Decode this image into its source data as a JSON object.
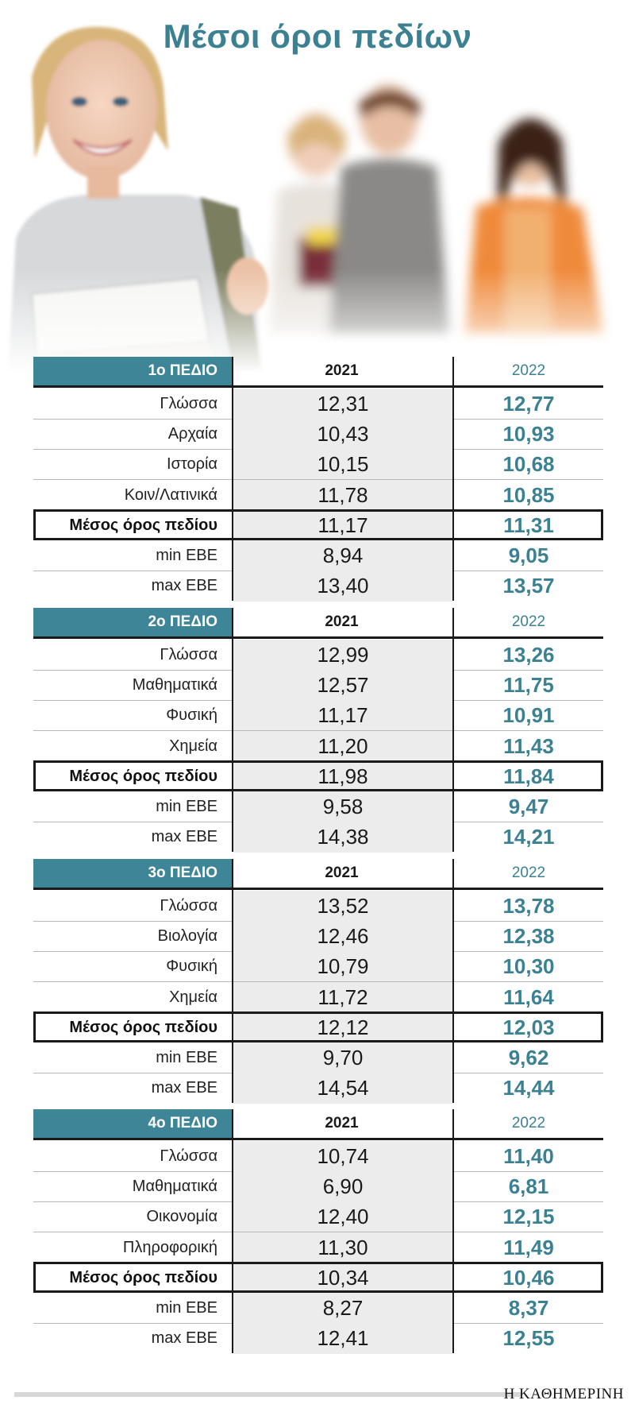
{
  "title": "Μέσοι όροι πεδίων",
  "credit": "Η ΚΑΘΗΜΕΡΙΝΗ",
  "colors": {
    "accent": "#3e8597",
    "value_2022": "#3b8192",
    "shade_2021": "#ececec"
  },
  "chart_data": [
    {
      "type": "table",
      "title": "1ο ΠΕΔΙΟ",
      "columns": [
        "2021",
        "2022"
      ],
      "rows": [
        {
          "label": "Γλώσσα",
          "v2021": "12,31",
          "v2022": "12,77"
        },
        {
          "label": "Αρχαία",
          "v2021": "10,43",
          "v2022": "10,93"
        },
        {
          "label": "Ιστορία",
          "v2021": "10,15",
          "v2022": "10,68"
        },
        {
          "label": "Κοιν/Λατινικά",
          "v2021": "11,78",
          "v2022": "10,85"
        },
        {
          "label": "Μέσος όρος πεδίου",
          "v2021": "11,17",
          "v2022": "11,31",
          "highlight": true
        },
        {
          "label": "min ΕΒΕ",
          "v2021": "8,94",
          "v2022": "9,05"
        },
        {
          "label": "max ΕΒΕ",
          "v2021": "13,40",
          "v2022": "13,57"
        }
      ]
    },
    {
      "type": "table",
      "title": "2ο ΠΕΔΙΟ",
      "columns": [
        "2021",
        "2022"
      ],
      "rows": [
        {
          "label": "Γλώσσα",
          "v2021": "12,99",
          "v2022": "13,26"
        },
        {
          "label": "Μαθηματικά",
          "v2021": "12,57",
          "v2022": "11,75"
        },
        {
          "label": "Φυσική",
          "v2021": "11,17",
          "v2022": "10,91"
        },
        {
          "label": "Χημεία",
          "v2021": "11,20",
          "v2022": "11,43"
        },
        {
          "label": "Μέσος όρος πεδίου",
          "v2021": "11,98",
          "v2022": "11,84",
          "highlight": true
        },
        {
          "label": "min ΕΒΕ",
          "v2021": "9,58",
          "v2022": "9,47"
        },
        {
          "label": "max ΕΒΕ",
          "v2021": "14,38",
          "v2022": "14,21"
        }
      ]
    },
    {
      "type": "table",
      "title": "3ο ΠΕΔΙΟ",
      "columns": [
        "2021",
        "2022"
      ],
      "rows": [
        {
          "label": "Γλώσσα",
          "v2021": "13,52",
          "v2022": "13,78"
        },
        {
          "label": "Βιολογία",
          "v2021": "12,46",
          "v2022": "12,38"
        },
        {
          "label": "Φυσική",
          "v2021": "10,79",
          "v2022": "10,30"
        },
        {
          "label": "Χημεία",
          "v2021": "11,72",
          "v2022": "11,64"
        },
        {
          "label": "Μέσος όρος πεδίου",
          "v2021": "12,12",
          "v2022": "12,03",
          "highlight": true
        },
        {
          "label": "min ΕΒΕ",
          "v2021": "9,70",
          "v2022": "9,62"
        },
        {
          "label": "max ΕΒΕ",
          "v2021": "14,54",
          "v2022": "14,44"
        }
      ]
    },
    {
      "type": "table",
      "title": "4ο ΠΕΔΙΟ",
      "columns": [
        "2021",
        "2022"
      ],
      "rows": [
        {
          "label": "Γλώσσα",
          "v2021": "10,74",
          "v2022": "11,40"
        },
        {
          "label": "Μαθηματικά",
          "v2021": "6,90",
          "v2022": "6,81"
        },
        {
          "label": "Οικονομία",
          "v2021": "12,40",
          "v2022": "12,15"
        },
        {
          "label": "Πληροφορική",
          "v2021": "11,30",
          "v2022": "11,49"
        },
        {
          "label": "Μέσος όρος πεδίου",
          "v2021": "10,34",
          "v2022": "10,46",
          "highlight": true
        },
        {
          "label": "min ΕΒΕ",
          "v2021": "8,27",
          "v2022": "8,37"
        },
        {
          "label": "max ΕΒΕ",
          "v2021": "12,41",
          "v2022": "12,55"
        }
      ]
    }
  ]
}
